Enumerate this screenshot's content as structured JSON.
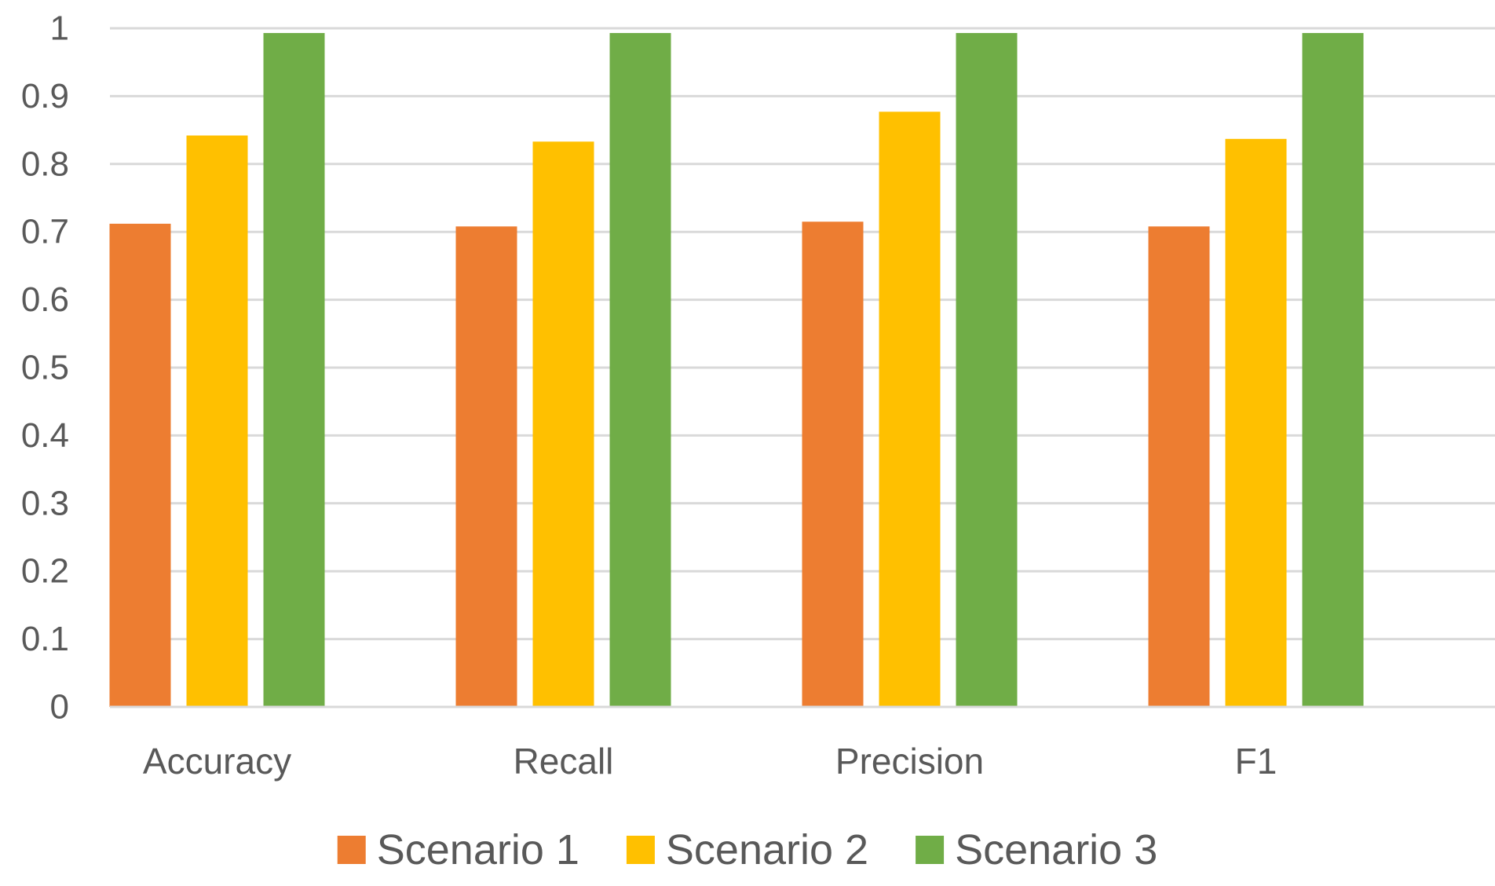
{
  "chart_data": {
    "type": "bar",
    "title": "",
    "xlabel": "",
    "ylabel": "",
    "categories": [
      "Accuracy",
      "Recall",
      "Precision",
      "F1"
    ],
    "series": [
      {
        "name": "Scenario 1",
        "color": "#ED7D31",
        "values": [
          0.712,
          0.708,
          0.715,
          0.708
        ]
      },
      {
        "name": "Scenario 2",
        "color": "#FFC000",
        "values": [
          0.842,
          0.833,
          0.877,
          0.837
        ]
      },
      {
        "name": "Scenario 3",
        "color": "#70AD47",
        "values": [
          0.993,
          0.993,
          0.993,
          0.993
        ]
      }
    ],
    "ylim": [
      0,
      1
    ],
    "yticks": [
      "0",
      "0.1",
      "0.2",
      "0.3",
      "0.4",
      "0.5",
      "0.6",
      "0.7",
      "0.8",
      "0.9",
      "1"
    ],
    "ytick_values": [
      0,
      0.1,
      0.2,
      0.3,
      0.4,
      0.5,
      0.6,
      0.7,
      0.8,
      0.9,
      1
    ],
    "grid": true,
    "legend_position": "bottom",
    "gridline_color": "#D9D9D9",
    "text_color": "#595959"
  }
}
